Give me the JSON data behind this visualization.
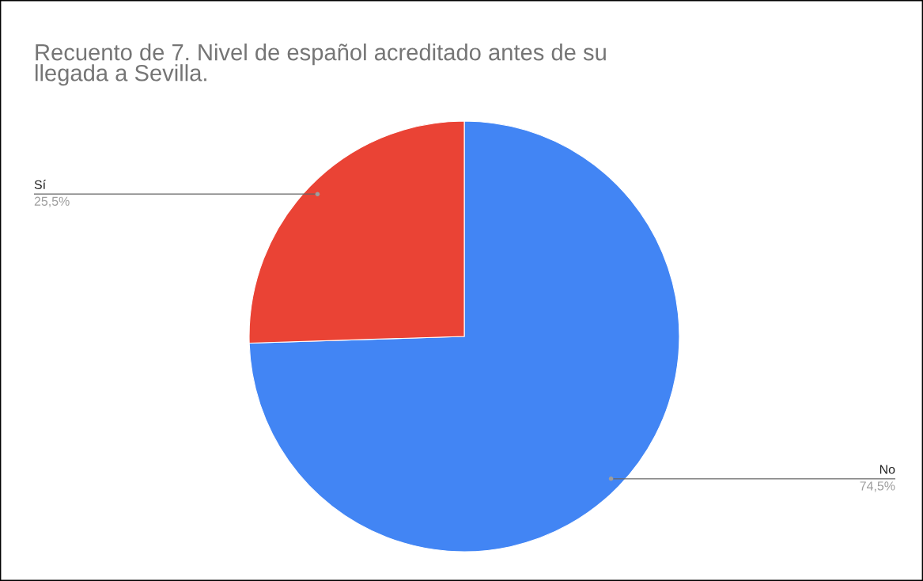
{
  "chart_data": {
    "type": "pie",
    "title": "Recuento de 7. Nivel de español acreditado antes de su llegada a Sevilla.",
    "categories": [
      "No",
      "Sí"
    ],
    "values": [
      74.5,
      25.5
    ],
    "colors": [
      "#4285f4",
      "#ea4335"
    ],
    "value_labels": [
      "74,5%",
      "25,5%"
    ]
  }
}
